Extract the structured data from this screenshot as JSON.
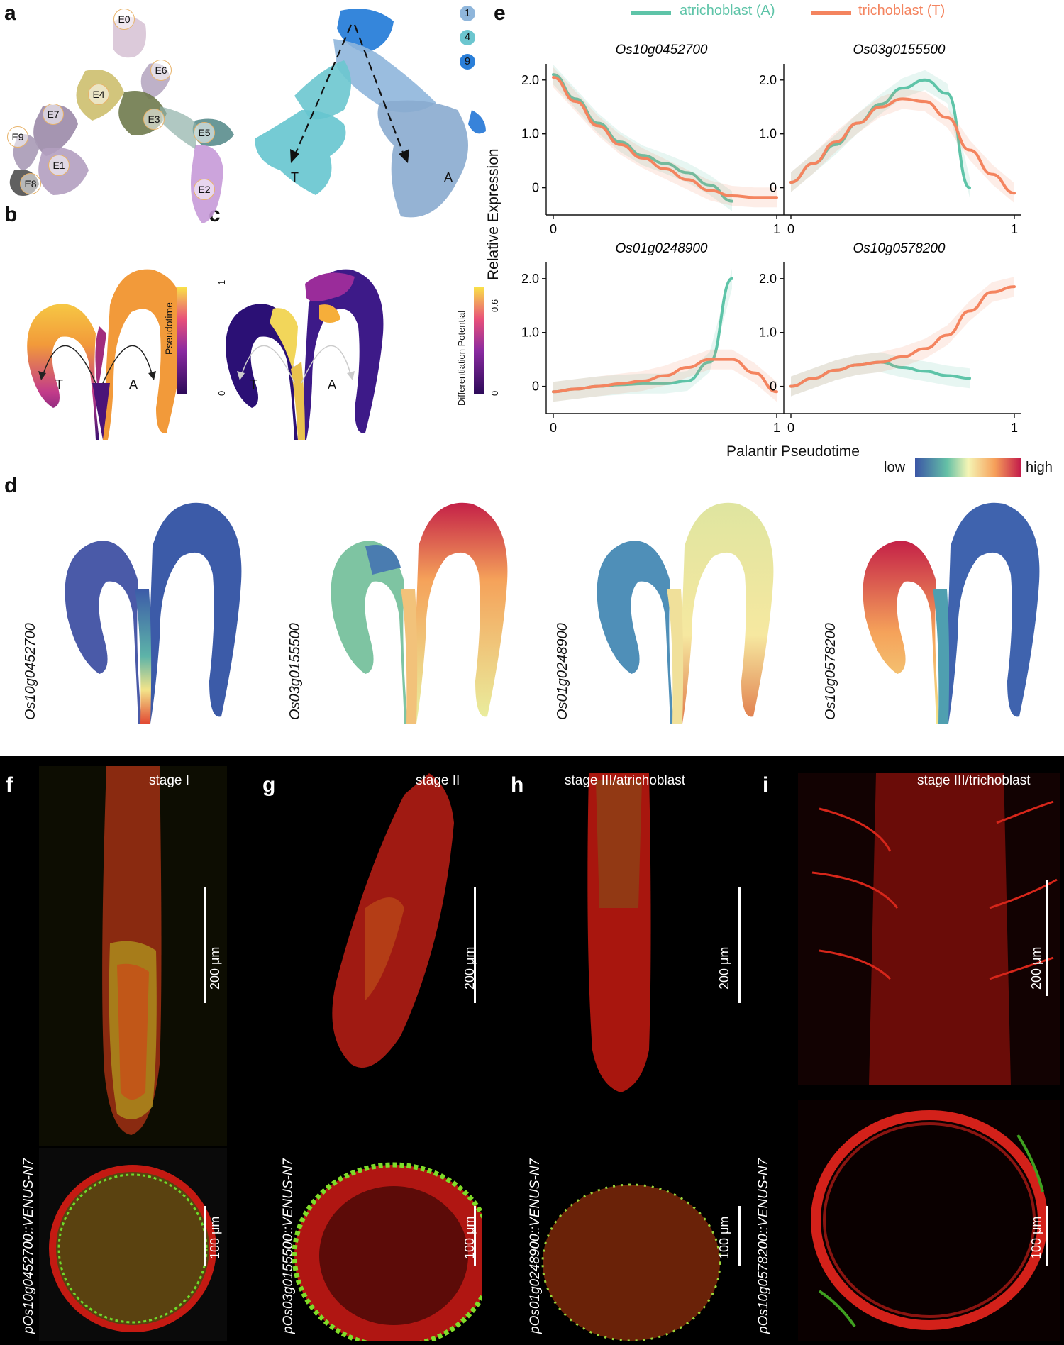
{
  "panels": {
    "a": "a",
    "b": "b",
    "c": "c",
    "d": "d",
    "e": "e",
    "f": "f",
    "g": "g",
    "h": "h",
    "i": "i"
  },
  "panel_a": {
    "clusters": [
      "E0",
      "E6",
      "E4",
      "E7",
      "E3",
      "E9",
      "E5",
      "E1",
      "E8",
      "E2"
    ],
    "legend": [
      "1",
      "4",
      "9"
    ],
    "lineage_t": "T",
    "lineage_a": "A"
  },
  "panel_b": {
    "t": "T",
    "a": "A",
    "cbar_label": "Pseudotime",
    "cbar_max": "1",
    "cbar_min": "0"
  },
  "panel_c": {
    "t": "T",
    "a": "A",
    "cbar_label": "Differentiation Potential",
    "cbar_max": "0.6",
    "cbar_min": "0"
  },
  "panel_d": {
    "genes": [
      "Os10g0452700",
      "Os03g0155500",
      "Os01g0248900",
      "Os10g0578200"
    ]
  },
  "panel_e": {
    "legend": [
      "atrichoblast (A)",
      "trichoblast (T)"
    ],
    "ylabel": "Relative Expression",
    "xlabel": "Palantir Pseudotime",
    "colorbar_low": "low",
    "colorbar_high": "high"
  },
  "chart_data": [
    {
      "type": "line",
      "title": "Os10g0452700",
      "x": [
        0,
        0.1,
        0.2,
        0.3,
        0.4,
        0.5,
        0.6,
        0.7,
        0.8,
        0.9,
        1.0
      ],
      "series": [
        {
          "name": "atrichoblast (A)",
          "values": [
            2.1,
            1.65,
            1.2,
            0.85,
            0.6,
            0.45,
            0.28,
            0.05,
            -0.25,
            null,
            null
          ]
        },
        {
          "name": "trichoblast (T)",
          "values": [
            2.05,
            1.6,
            1.15,
            0.8,
            0.55,
            0.35,
            0.15,
            -0.05,
            -0.15,
            -0.18,
            -0.18
          ]
        }
      ],
      "ylim": [
        -0.4,
        2.3
      ],
      "xlim": [
        0,
        1
      ],
      "yticks": [
        "0",
        "1.0",
        "2.0"
      ],
      "xticks": [
        "0",
        "1"
      ]
    },
    {
      "type": "line",
      "title": "Os03g0155500",
      "x": [
        0,
        0.1,
        0.2,
        0.3,
        0.4,
        0.5,
        0.6,
        0.7,
        0.8,
        0.9,
        1.0
      ],
      "series": [
        {
          "name": "atrichoblast (A)",
          "values": [
            0.1,
            0.45,
            0.8,
            1.2,
            1.55,
            1.85,
            2.0,
            1.75,
            0.0,
            null,
            null
          ]
        },
        {
          "name": "trichoblast (T)",
          "values": [
            0.1,
            0.45,
            0.85,
            1.2,
            1.5,
            1.65,
            1.6,
            1.3,
            0.7,
            0.25,
            -0.1
          ]
        }
      ],
      "ylim": [
        -0.4,
        2.3
      ],
      "xlim": [
        0,
        1
      ],
      "yticks": [
        "0",
        "1.0",
        "2.0"
      ],
      "xticks": [
        "0",
        "1"
      ]
    },
    {
      "type": "line",
      "title": "Os01g0248900",
      "x": [
        0,
        0.1,
        0.2,
        0.3,
        0.4,
        0.5,
        0.6,
        0.7,
        0.8,
        0.9,
        1.0
      ],
      "series": [
        {
          "name": "atrichoblast (A)",
          "values": [
            -0.1,
            -0.05,
            0.0,
            0.03,
            0.05,
            0.05,
            0.1,
            0.45,
            2.0,
            null,
            null
          ]
        },
        {
          "name": "trichoblast (T)",
          "values": [
            -0.1,
            -0.05,
            0.0,
            0.05,
            0.1,
            0.2,
            0.35,
            0.5,
            0.5,
            0.25,
            -0.1
          ]
        }
      ],
      "ylim": [
        -0.4,
        2.3
      ],
      "xlim": [
        0,
        1
      ],
      "yticks": [
        "0",
        "1.0",
        "2.0"
      ],
      "xticks": [
        "0",
        "1"
      ]
    },
    {
      "type": "line",
      "title": "Os10g0578200",
      "x": [
        0,
        0.1,
        0.2,
        0.3,
        0.4,
        0.5,
        0.6,
        0.7,
        0.8,
        0.9,
        1.0
      ],
      "series": [
        {
          "name": "atrichoblast (A)",
          "values": [
            0.0,
            0.15,
            0.3,
            0.4,
            0.45,
            0.35,
            0.28,
            0.2,
            0.15,
            null,
            null
          ]
        },
        {
          "name": "trichoblast (T)",
          "values": [
            0.0,
            0.15,
            0.3,
            0.4,
            0.45,
            0.55,
            0.7,
            0.95,
            1.4,
            1.75,
            1.85
          ]
        }
      ],
      "ylim": [
        -0.4,
        2.3
      ],
      "xlim": [
        0,
        1
      ],
      "yticks": [
        "0",
        "1.0",
        "2.0"
      ],
      "xticks": [
        "0",
        "1"
      ]
    }
  ],
  "micrographs": {
    "f": {
      "stage": "stage I",
      "construct": "pOs10g0452700::VENUS-N7",
      "scale_top": "200 μm",
      "scale_bottom": "100 μm"
    },
    "g": {
      "stage": "stage II",
      "construct": "pOs03g0155500::VENUS-N7",
      "scale_top": "200 μm",
      "scale_bottom": "100 μm"
    },
    "h": {
      "stage": "stage III/atrichoblast",
      "construct": "pOs01g0248900::VENUS-N7",
      "scale_top": "200 μm",
      "scale_bottom": "100 μm"
    },
    "i": {
      "stage": "stage III/trichoblast",
      "construct": "pOs10g0578200::VENUS-N7",
      "scale_top": "200 μm",
      "scale_bottom": "100 μm"
    }
  },
  "colors": {
    "atrichoblast": "#5ec4a8",
    "trichoblast": "#f4845f"
  }
}
